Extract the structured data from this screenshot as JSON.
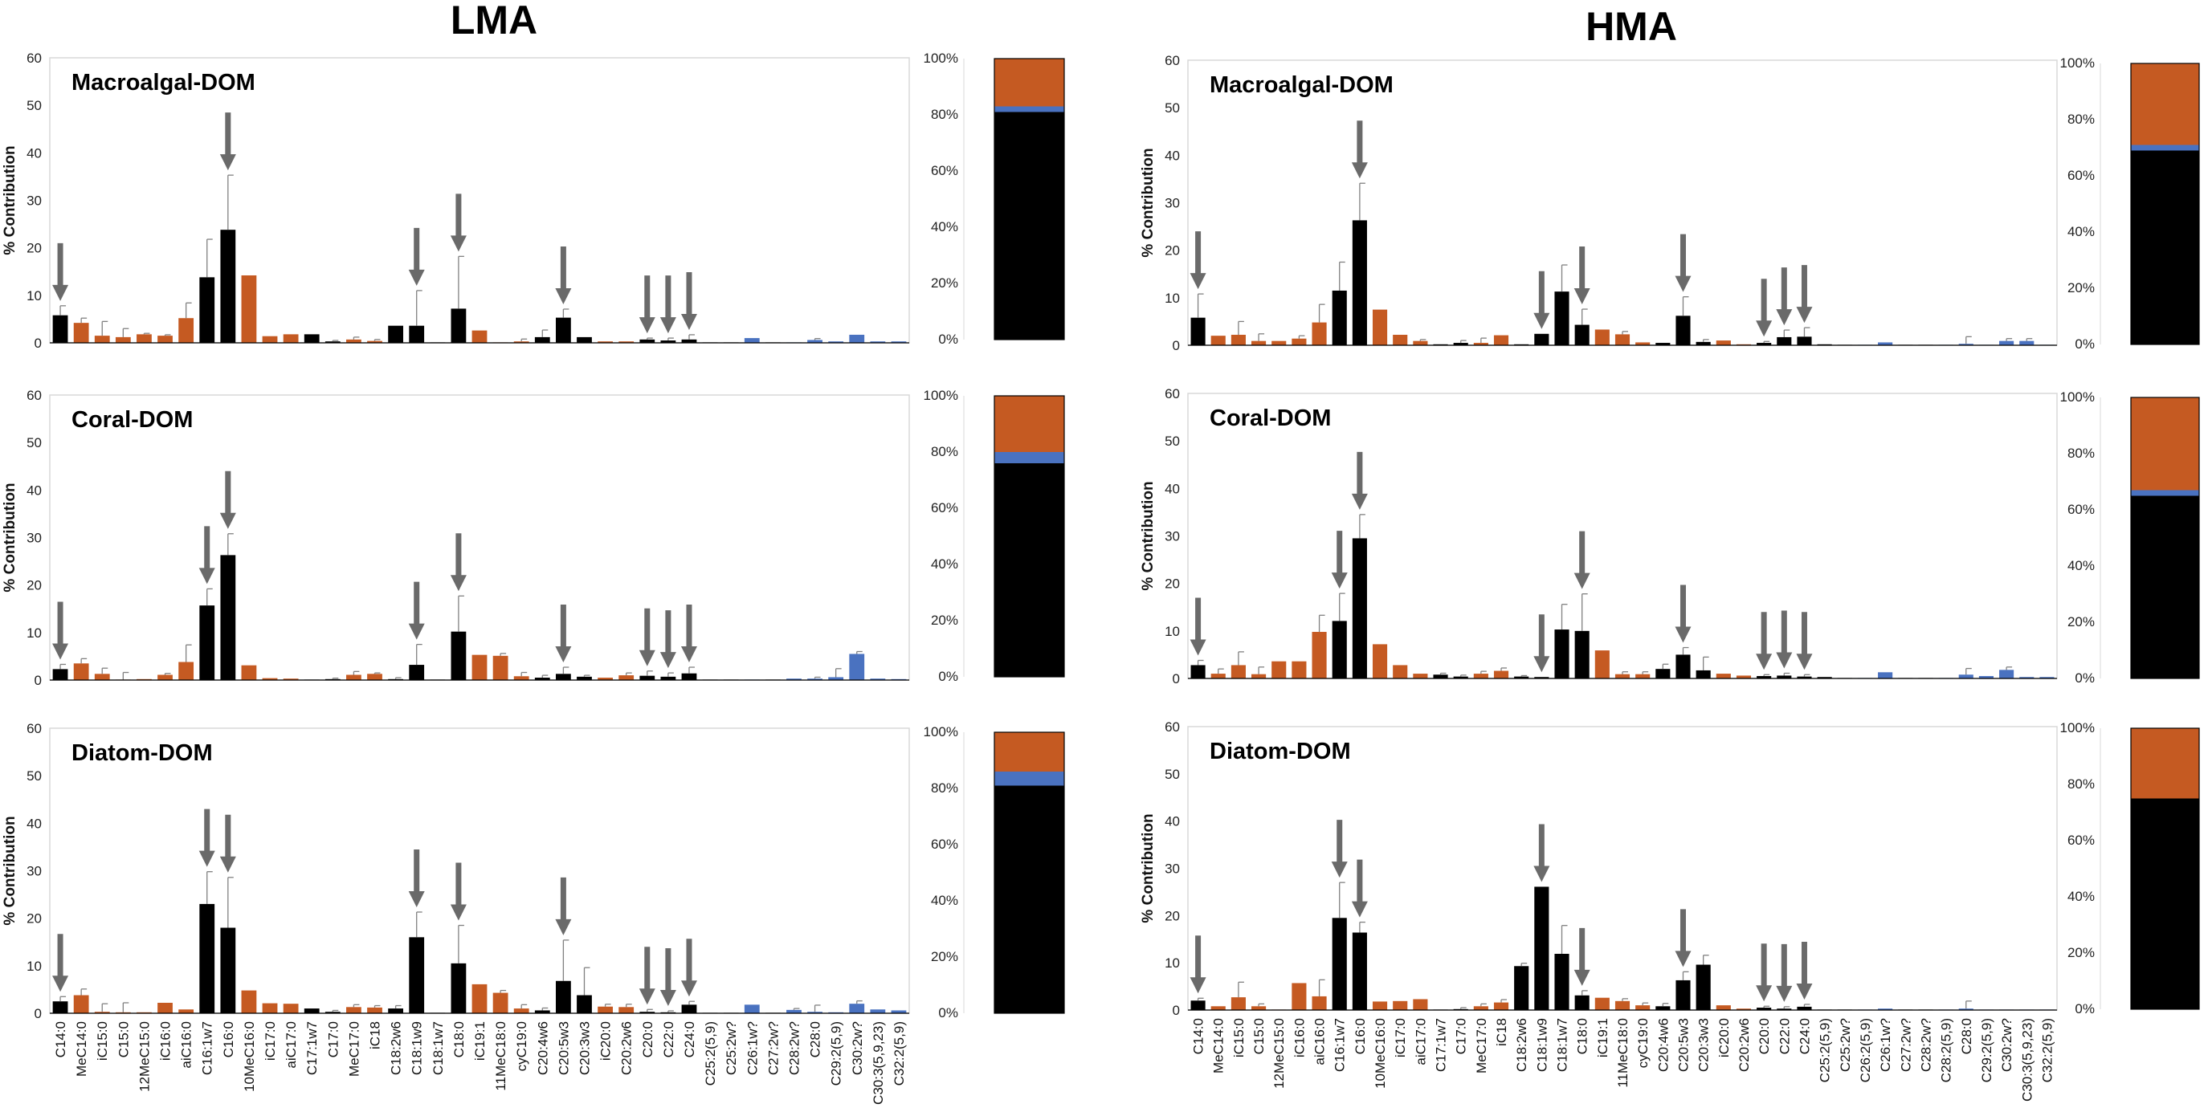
{
  "columns": [
    {
      "title": "LMA"
    },
    {
      "title": "HMA"
    }
  ],
  "colors": {
    "black": "#000000",
    "orange": "#c55a22",
    "blue": "#4a72c0",
    "arrow": "#6a6a6a",
    "error": "#808080"
  },
  "chart_data": [
    {
      "type": "bar",
      "title": "Macroalgal-DOM",
      "column": "LMA",
      "ylabel": "% Contribution",
      "ylim": [
        0,
        60
      ],
      "yticks": [
        0,
        10,
        20,
        30,
        40,
        50,
        60
      ],
      "categories": [
        "C14:0",
        "MeC14:0",
        "iC15:0",
        "C15:0",
        "12MeC15:0",
        "iC16:0",
        "aiC16:0",
        "C16:1w7",
        "C16:0",
        "10MeC16:0",
        "iC17:0",
        "aiC17:0",
        "C17:1w7",
        "C17:0",
        "MeC17:0",
        "iC18",
        "C18:2w6",
        "C18:1w9",
        "C18:1w7",
        "C18:0",
        "iC19:1",
        "11MeC18:0",
        "cyC19:0",
        "C20:4w6",
        "C20:5w3",
        "C20:3w3",
        "iC20:0",
        "C20:2w6",
        "C20:0",
        "C22:0",
        "C24:0",
        "C25:2(5,9)",
        "C25:2w?",
        "C26:1w?",
        "C27:2w?",
        "C28:2w?",
        "C28:0",
        "C29:2(5,9)",
        "C30:2w?",
        "C30:3(5,9,23)",
        "C32:2(5,9)"
      ],
      "values": [
        5.8,
        4.2,
        1.5,
        1.2,
        1.8,
        1.5,
        5.2,
        13.8,
        23.8,
        14.2,
        1.4,
        1.8,
        1.8,
        0.3,
        0.7,
        0.4,
        3.6,
        3.6,
        0.1,
        7.2,
        2.6,
        0.1,
        0.3,
        1.2,
        5.3,
        1.2,
        0.3,
        0.3,
        0.7,
        0.5,
        0.7,
        0.1,
        0.1,
        1.0,
        0.1,
        0.1,
        0.6,
        0.3,
        1.7,
        0.3,
        0.3
      ],
      "errors": [
        2.0,
        1.0,
        3.0,
        1.8,
        0.2,
        0.2,
        3.2,
        8.0,
        11.5,
        0,
        0,
        0,
        0,
        0.2,
        0.5,
        0.3,
        0,
        7.4,
        0,
        11.0,
        0,
        0,
        0.5,
        1.5,
        1.8,
        0,
        0,
        0,
        0.3,
        0.5,
        1.0,
        0,
        0,
        0,
        0,
        0,
        0.3,
        0,
        0,
        0,
        0
      ],
      "types": [
        "k",
        "o",
        "o",
        "o",
        "o",
        "o",
        "o",
        "k",
        "k",
        "o",
        "o",
        "o",
        "k",
        "k",
        "o",
        "o",
        "k",
        "k",
        "k",
        "k",
        "o",
        "o",
        "o",
        "k",
        "k",
        "k",
        "o",
        "o",
        "k",
        "k",
        "k",
        "k",
        "k",
        "b",
        "k",
        "b",
        "b",
        "b",
        "b",
        "b",
        "b"
      ],
      "arrows": [
        "C14:0",
        "C16:0",
        "C18:1w9",
        "C18:0",
        "C20:5w3",
        "C20:0",
        "C22:0",
        "C24:0"
      ],
      "stacked": {
        "black": 81,
        "blue": 2,
        "orange": 17
      },
      "stack_ticks": [
        "0%",
        "20%",
        "40%",
        "60%",
        "80%",
        "100%"
      ]
    },
    {
      "type": "bar",
      "title": "Coral-DOM",
      "column": "LMA",
      "ylabel": "% Contribution",
      "ylim": [
        0,
        60
      ],
      "yticks": [
        0,
        10,
        20,
        30,
        40,
        50,
        60
      ],
      "categories": [
        "C14:0",
        "MeC14:0",
        "iC15:0",
        "C15:0",
        "12MeC15:0",
        "iC16:0",
        "aiC16:0",
        "C16:1w7",
        "C16:0",
        "10MeC16:0",
        "iC17:0",
        "aiC17:0",
        "C17:1w7",
        "C17:0",
        "MeC17:0",
        "iC18",
        "C18:2w6",
        "C18:1w9",
        "C18:1w7",
        "C18:0",
        "iC19:1",
        "11MeC18:0",
        "cyC19:0",
        "C20:4w6",
        "C20:5w3",
        "C20:3w3",
        "iC20:0",
        "C20:2w6",
        "C20:0",
        "C22:0",
        "C24:0",
        "C25:2(5,9)",
        "C25:2w?",
        "C26:1w?",
        "C27:2w?",
        "C28:2w?",
        "C28:0",
        "C29:2(5,9)",
        "C30:2w?",
        "C30:3(5,9,23)",
        "C32:2(5,9)"
      ],
      "values": [
        2.3,
        3.5,
        1.3,
        0.1,
        0.2,
        1.1,
        3.8,
        15.7,
        26.3,
        3.1,
        0.4,
        0.3,
        0.1,
        0.2,
        1.1,
        1.3,
        0.2,
        3.2,
        0.1,
        10.2,
        5.3,
        5.1,
        0.8,
        0.5,
        1.3,
        0.7,
        0.5,
        1.0,
        0.9,
        0.7,
        1.4,
        0.1,
        0.1,
        0.1,
        0.1,
        0.3,
        0.3,
        0.6,
        5.5,
        0.3,
        0.2
      ],
      "errors": [
        1.0,
        1.0,
        1.2,
        1.5,
        0,
        0.3,
        3.6,
        3.5,
        4.5,
        0,
        0,
        0,
        0,
        0.2,
        0.7,
        0.2,
        0.3,
        4.3,
        0,
        7.5,
        0,
        0.5,
        0.8,
        0.5,
        1.4,
        0.3,
        0,
        0.5,
        1.0,
        0.8,
        1.3,
        0,
        0,
        0,
        0,
        0,
        0.3,
        1.8,
        0.5,
        0,
        0
      ],
      "types": [
        "k",
        "o",
        "o",
        "o",
        "o",
        "o",
        "o",
        "k",
        "k",
        "o",
        "o",
        "o",
        "k",
        "k",
        "o",
        "o",
        "k",
        "k",
        "k",
        "k",
        "o",
        "o",
        "o",
        "k",
        "k",
        "k",
        "o",
        "o",
        "k",
        "k",
        "k",
        "k",
        "k",
        "b",
        "k",
        "b",
        "b",
        "b",
        "b",
        "b",
        "b"
      ],
      "arrows": [
        "C14:0",
        "C16:1w7",
        "C16:0",
        "C18:1w9",
        "C18:0",
        "C20:5w3",
        "C20:0",
        "C22:0",
        "C24:0"
      ],
      "stacked": {
        "black": 76,
        "blue": 4,
        "orange": 20
      },
      "stack_ticks": [
        "0%",
        "20%",
        "40%",
        "60%",
        "80%",
        "100%"
      ]
    },
    {
      "type": "bar",
      "title": "Diatom-DOM",
      "column": "LMA",
      "ylabel": "% Contribution",
      "ylim": [
        0,
        60
      ],
      "yticks": [
        0,
        10,
        20,
        30,
        40,
        50,
        60
      ],
      "categories": [
        "C14:0",
        "MeC14:0",
        "iC15:0",
        "C15:0",
        "12MeC15:0",
        "iC16:0",
        "aiC16:0",
        "C16:1w7",
        "C16:0",
        "10MeC16:0",
        "iC17:0",
        "aiC17:0",
        "C17:1w7",
        "C17:0",
        "MeC17:0",
        "iC18",
        "C18:2w6",
        "C18:1w9",
        "C18:1w7",
        "C18:0",
        "iC19:1",
        "11MeC18:0",
        "cyC19:0",
        "C20:4w6",
        "C20:5w3",
        "C20:3w3",
        "iC20:0",
        "C20:2w6",
        "C20:0",
        "C22:0",
        "C24:0",
        "C25:2(5,9)",
        "C25:2w?",
        "C26:1w?",
        "C27:2w?",
        "C28:2w?",
        "C28:0",
        "C29:2(5,9)",
        "C30:2w?",
        "C30:3(5,9,23)",
        "C32:2(5,9)"
      ],
      "values": [
        2.5,
        3.8,
        0.3,
        0.2,
        0.2,
        2.2,
        0.8,
        23.0,
        18.0,
        4.8,
        2.1,
        2.0,
        1.0,
        0.3,
        1.3,
        1.2,
        1.0,
        16.0,
        0.1,
        10.5,
        6.1,
        4.3,
        1.0,
        0.6,
        6.8,
        3.8,
        1.4,
        1.3,
        0.3,
        0.2,
        1.8,
        0.1,
        0.1,
        1.8,
        0.1,
        0.7,
        0.3,
        0.2,
        2.0,
        0.8,
        0.6
      ],
      "errors": [
        1.0,
        1.3,
        1.7,
        2.0,
        0,
        0,
        0,
        6.8,
        10.6,
        0,
        0,
        0,
        0,
        0.3,
        0.5,
        0.4,
        0.6,
        5.3,
        0,
        8.0,
        0,
        0.5,
        0.8,
        0.5,
        8.6,
        5.8,
        0.5,
        0.6,
        0.5,
        0.3,
        0.7,
        0,
        0,
        0,
        0,
        0.3,
        1.4,
        0,
        0.6,
        0,
        0
      ],
      "types": [
        "k",
        "o",
        "o",
        "o",
        "o",
        "o",
        "o",
        "k",
        "k",
        "o",
        "o",
        "o",
        "k",
        "k",
        "o",
        "o",
        "k",
        "k",
        "k",
        "k",
        "o",
        "o",
        "o",
        "k",
        "k",
        "k",
        "o",
        "o",
        "k",
        "k",
        "k",
        "k",
        "k",
        "b",
        "k",
        "b",
        "b",
        "b",
        "b",
        "b",
        "b"
      ],
      "arrows": [
        "C14:0",
        "C16:1w7",
        "C16:0",
        "C18:1w9",
        "C18:0",
        "C20:5w3",
        "C20:0",
        "C22:0",
        "C24:0"
      ],
      "stacked": {
        "black": 81,
        "blue": 5,
        "orange": 14
      },
      "stack_ticks": [
        "0%",
        "20%",
        "40%",
        "60%",
        "80%",
        "100%"
      ]
    },
    {
      "type": "bar",
      "title": "Macroalgal-DOM",
      "column": "HMA",
      "ylabel": "% Contribution",
      "ylim": [
        0,
        60
      ],
      "yticks": [
        0,
        10,
        20,
        30,
        40,
        50,
        60
      ],
      "categories": [
        "C14:0",
        "MeC14:0",
        "iC15:0",
        "C15:0",
        "12MeC15:0",
        "iC16:0",
        "aiC16:0",
        "C16:1w7",
        "C16:0",
        "10MeC16:0",
        "iC17:0",
        "aiC17:0",
        "C17:1w7",
        "C17:0",
        "MeC17:0",
        "iC18",
        "C18:2w6",
        "C18:1w9",
        "C18:1w7",
        "C18:0",
        "iC19:1",
        "11MeC18:0",
        "cyC19:0",
        "C20:4w6",
        "C20:5w3",
        "C20:3w3",
        "iC20:0",
        "C20:2w6",
        "C20:0",
        "C22:0",
        "C24:0",
        "C25:2(5,9)",
        "C25:2w?",
        "C26:2(5,9)",
        "C26:1w?",
        "C27:2w?",
        "C28:2w?",
        "C28:2(5,9)",
        "C28:0",
        "C29:2(5,9)",
        "C30:2w?",
        "C30:3(5,9,23)",
        "C32:2(5,9)"
      ],
      "values": [
        5.8,
        2.0,
        2.2,
        0.9,
        0.9,
        1.4,
        4.8,
        11.5,
        26.3,
        7.5,
        2.2,
        0.9,
        0.2,
        0.5,
        0.5,
        2.1,
        0.2,
        2.4,
        11.3,
        4.3,
        3.3,
        2.3,
        0.6,
        0.5,
        6.2,
        0.7,
        1.0,
        0.2,
        0.5,
        1.7,
        1.8,
        0.2,
        0.1,
        0.1,
        0.6,
        0.1,
        0.1,
        0.1,
        0.3,
        0.1,
        0.9,
        0.9,
        0.1
      ],
      "errors": [
        5.0,
        0,
        2.8,
        1.5,
        0,
        0.6,
        3.8,
        6.0,
        7.8,
        0,
        0,
        0.3,
        0,
        0.5,
        1.0,
        0,
        0,
        0,
        5.6,
        3.3,
        0,
        0.6,
        0,
        0,
        4.0,
        0.5,
        0,
        0,
        0.3,
        1.5,
        1.9,
        0,
        0,
        0,
        0,
        0,
        0,
        0,
        1.5,
        0,
        0.5,
        0.5,
        0
      ],
      "types": [
        "k",
        "o",
        "o",
        "o",
        "o",
        "o",
        "o",
        "k",
        "k",
        "o",
        "o",
        "o",
        "k",
        "k",
        "o",
        "o",
        "k",
        "k",
        "k",
        "k",
        "o",
        "o",
        "o",
        "k",
        "k",
        "k",
        "o",
        "o",
        "k",
        "k",
        "k",
        "k",
        "k",
        "b",
        "b",
        "k",
        "k",
        "b",
        "b",
        "b",
        "b",
        "b",
        "b"
      ],
      "arrows": [
        "C14:0",
        "C16:0",
        "C18:1w9",
        "C18:0",
        "C20:5w3",
        "C20:0",
        "C22:0",
        "C24:0"
      ],
      "stacked": {
        "black": 69,
        "blue": 2,
        "orange": 29
      },
      "stack_ticks": [
        "0%",
        "20%",
        "40%",
        "60%",
        "80%",
        "100%"
      ]
    },
    {
      "type": "bar",
      "title": "Coral-DOM",
      "column": "HMA",
      "ylabel": "% Contribution",
      "ylim": [
        0,
        60
      ],
      "yticks": [
        0,
        10,
        20,
        30,
        40,
        50,
        60
      ],
      "categories": [
        "C14:0",
        "MeC14:0",
        "iC15:0",
        "C15:0",
        "12MeC15:0",
        "iC16:0",
        "aiC16:0",
        "C16:1w7",
        "C16:0",
        "10MeC16:0",
        "iC17:0",
        "aiC17:0",
        "C17:1w7",
        "C17:0",
        "MeC17:0",
        "iC18",
        "C18:2w6",
        "C18:1w9",
        "C18:1w7",
        "C18:0",
        "iC19:1",
        "11MeC18:0",
        "cyC19:0",
        "C20:4w6",
        "C20:5w3",
        "C20:3w3",
        "iC20:0",
        "C20:2w6",
        "C20:0",
        "C22:0",
        "C24:0",
        "C25:2(5,9)",
        "C25:2w?",
        "C26:2(5,9)",
        "C26:1w?",
        "C27:2w?",
        "C28:2w?",
        "C28:2(5,9)",
        "C28:0",
        "C29:2(5,9)",
        "C30:2w?",
        "C30:3(5,9,23)",
        "C32:2(5,9)"
      ],
      "values": [
        2.8,
        1.0,
        2.8,
        0.9,
        3.6,
        3.6,
        9.8,
        12.1,
        29.5,
        7.2,
        2.8,
        1.0,
        0.8,
        0.4,
        1.0,
        1.6,
        0.4,
        0.3,
        10.3,
        10.0,
        5.9,
        0.9,
        0.9,
        2.0,
        5.0,
        1.7,
        1.0,
        0.6,
        0.5,
        0.6,
        0.4,
        0.3,
        0.1,
        0.1,
        1.3,
        0.1,
        0.1,
        0.1,
        0.8,
        0.5,
        1.8,
        0.3,
        0.3
      ],
      "errors": [
        1.0,
        1.0,
        2.8,
        1.5,
        0,
        0,
        3.5,
        5.8,
        5.0,
        0,
        0,
        0,
        0.3,
        0.3,
        0.5,
        0.6,
        0.2,
        0,
        5.3,
        7.8,
        0,
        0.5,
        0.5,
        1.0,
        1.5,
        2.8,
        0,
        0,
        0.3,
        0.5,
        0.4,
        0,
        0,
        0,
        0,
        0,
        0,
        0,
        1.3,
        0,
        0.6,
        0,
        0
      ],
      "types": [
        "k",
        "o",
        "o",
        "o",
        "o",
        "o",
        "o",
        "k",
        "k",
        "o",
        "o",
        "o",
        "k",
        "k",
        "o",
        "o",
        "k",
        "k",
        "k",
        "k",
        "o",
        "o",
        "o",
        "k",
        "k",
        "k",
        "o",
        "o",
        "k",
        "k",
        "k",
        "k",
        "k",
        "b",
        "b",
        "k",
        "k",
        "b",
        "b",
        "b",
        "b",
        "b",
        "b"
      ],
      "arrows": [
        "C14:0",
        "C16:1w7",
        "C16:0",
        "C18:1w9",
        "C18:0",
        "C20:5w3",
        "C20:0",
        "C22:0",
        "C24:0"
      ],
      "stacked": {
        "black": 65,
        "blue": 2,
        "orange": 33
      },
      "stack_ticks": [
        "0%",
        "20%",
        "40%",
        "60%",
        "80%",
        "100%"
      ]
    },
    {
      "type": "bar",
      "title": "Diatom-DOM",
      "column": "HMA",
      "ylabel": "% Contribution",
      "ylim": [
        0,
        60
      ],
      "yticks": [
        0,
        10,
        20,
        30,
        40,
        50,
        60
      ],
      "categories": [
        "C14:0",
        "MeC14:0",
        "iC15:0",
        "C15:0",
        "12MeC15:0",
        "iC16:0",
        "aiC16:0",
        "C16:1w7",
        "C16:0",
        "10MeC16:0",
        "iC17:0",
        "aiC17:0",
        "C17:1w7",
        "C17:0",
        "MeC17:0",
        "iC18",
        "C18:2w6",
        "C18:1w9",
        "C18:1w7",
        "C18:0",
        "iC19:1",
        "11MeC18:0",
        "cyC19:0",
        "C20:4w6",
        "C20:5w3",
        "C20:3w3",
        "iC20:0",
        "C20:2w6",
        "C20:0",
        "C22:0",
        "C24:0",
        "C25:2(5,9)",
        "C25:2w?",
        "C26:2(5,9)",
        "C26:1w?",
        "C27:2w?",
        "C28:2w?",
        "C28:2(5,9)",
        "C28:0",
        "C29:2(5,9)",
        "C30:2w?",
        "C30:3(5,9,23)",
        "C32:2(5,9)"
      ],
      "values": [
        2.0,
        0.8,
        2.7,
        0.8,
        0.1,
        5.7,
        2.9,
        19.5,
        16.4,
        1.8,
        1.9,
        2.3,
        0.1,
        0.2,
        0.8,
        1.6,
        9.3,
        26.1,
        11.9,
        3.1,
        2.6,
        1.9,
        1.0,
        0.8,
        6.3,
        9.6,
        1.0,
        0.3,
        0.5,
        0.3,
        0.7,
        0.1,
        0.1,
        0.1,
        0.3,
        0.1,
        0.1,
        0.1,
        0.3,
        0.1,
        0.1,
        0.1,
        0.1
      ],
      "errors": [
        0.5,
        0,
        3.2,
        0.5,
        0,
        0,
        3.5,
        7.5,
        2.2,
        0,
        0,
        0,
        0,
        0.3,
        0.5,
        0.6,
        0.6,
        0,
        6.0,
        1.0,
        0,
        0.5,
        0.5,
        0.6,
        1.8,
        2.0,
        0,
        0,
        0.3,
        0.4,
        0.5,
        0,
        0,
        0,
        0,
        0,
        0,
        0,
        1.6,
        0,
        0,
        0,
        0
      ],
      "types": [
        "k",
        "o",
        "o",
        "o",
        "o",
        "o",
        "o",
        "k",
        "k",
        "o",
        "o",
        "o",
        "k",
        "k",
        "o",
        "o",
        "k",
        "k",
        "k",
        "k",
        "o",
        "o",
        "o",
        "k",
        "k",
        "k",
        "o",
        "o",
        "k",
        "k",
        "k",
        "k",
        "k",
        "b",
        "b",
        "k",
        "k",
        "b",
        "b",
        "b",
        "b",
        "b",
        "b"
      ],
      "arrows": [
        "C14:0",
        "C16:1w7",
        "C16:0",
        "C18:1w9",
        "C18:0",
        "C20:5w3",
        "C20:0",
        "C22:0",
        "C24:0"
      ],
      "stacked": {
        "black": 75,
        "blue": 0,
        "orange": 25
      },
      "stack_ticks": [
        "0%",
        "20%",
        "40%",
        "60%",
        "80%",
        "100%"
      ]
    }
  ]
}
